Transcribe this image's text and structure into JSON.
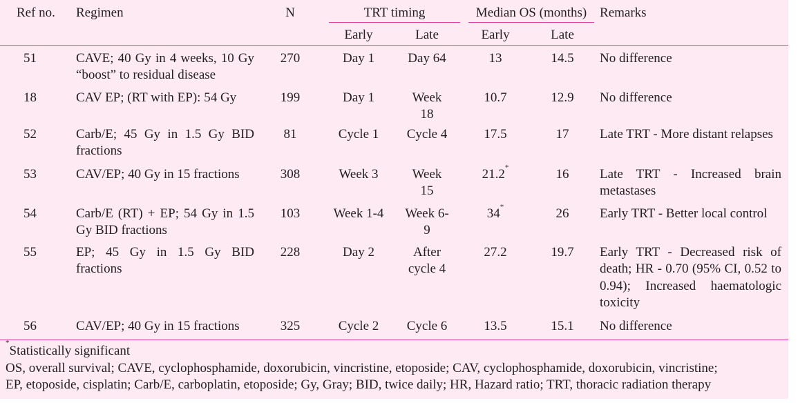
{
  "headers": {
    "ref": "Ref no.",
    "regimen": "Regimen",
    "n": "N",
    "trt_timing": "TRT timing",
    "median_os": "Median OS (months)",
    "remarks": "Remarks",
    "early": "Early",
    "late": "Late"
  },
  "rows": [
    {
      "ref": "51",
      "regimen": "CAVE; 40 Gy in 4 weeks, 10 Gy “boost” to residual disease",
      "n": "270",
      "trt_early": "Day 1",
      "trt_late": "Day 64",
      "os_early": "13",
      "os_early_sig": "",
      "os_late": "14.5",
      "remarks": "No difference"
    },
    {
      "ref": "18",
      "regimen": "CAV EP; (RT with EP): 54 Gy",
      "n": "199",
      "trt_early": "Day 1",
      "trt_late": "Week 18",
      "os_early": "10.7",
      "os_early_sig": "",
      "os_late": "12.9",
      "remarks": "No difference"
    },
    {
      "ref": "52",
      "regimen": "Carb/E; 45 Gy in 1.5 Gy BID fractions",
      "n": "81",
      "trt_early": "Cycle 1",
      "trt_late": "Cycle 4",
      "os_early": "17.5",
      "os_early_sig": "",
      "os_late": "17",
      "remarks": "Late TRT - More distant relapses"
    },
    {
      "ref": "53",
      "regimen": "CAV/EP; 40 Gy in 15 fractions",
      "n": "308",
      "trt_early": "Week 3",
      "trt_late": "Week 15",
      "os_early": "21.2",
      "os_early_sig": "*",
      "os_late": "16",
      "remarks": "Late TRT - Increased brain metastases"
    },
    {
      "ref": "54",
      "regimen": "Carb/E (RT) + EP; 54 Gy in 1.5 Gy BID fractions",
      "n": "103",
      "trt_early": "Week 1-4",
      "trt_late": "Week 6-9",
      "os_early": "34",
      "os_early_sig": "*",
      "os_late": "26",
      "remarks": "Early TRT - Better local control"
    },
    {
      "ref": "55",
      "regimen": "EP; 45 Gy in 1.5 Gy BID fractions",
      "n": "228",
      "trt_early": "Day 2",
      "trt_late": "After cycle 4",
      "os_early": "27.2",
      "os_early_sig": "",
      "os_late": "19.7",
      "remarks": "Early TRT - Decreased risk of death; HR - 0.70 (95% CI, 0.52 to 0.94); Increased haematologic toxicity"
    },
    {
      "ref": "56",
      "regimen": "CAV/EP; 40 Gy in 15 fractions",
      "n": "325",
      "trt_early": "Cycle 2",
      "trt_late": "Cycle 6",
      "os_early": "13.5",
      "os_early_sig": "",
      "os_late": "15.1",
      "remarks": "No difference"
    }
  ],
  "footnotes": {
    "sig_marker": "*",
    "significance": "Statistically significant",
    "abbrev_line1": "OS, overall survival; CAVE, cyclophosphamide, doxorubicin, vincristine, etoposide; CAV, cyclophosphamide, doxorubicin, vincristine;",
    "abbrev_line2": "EP, etoposide, cisplatin; Carb/E, carboplatin, etoposide; Gy, Gray; BID, twice daily; HR, Hazard ratio; TRT, thoracic radiation therapy"
  },
  "colors": {
    "background": "#fdeaf3",
    "rule": "#e0459b",
    "text": "#231f20"
  }
}
